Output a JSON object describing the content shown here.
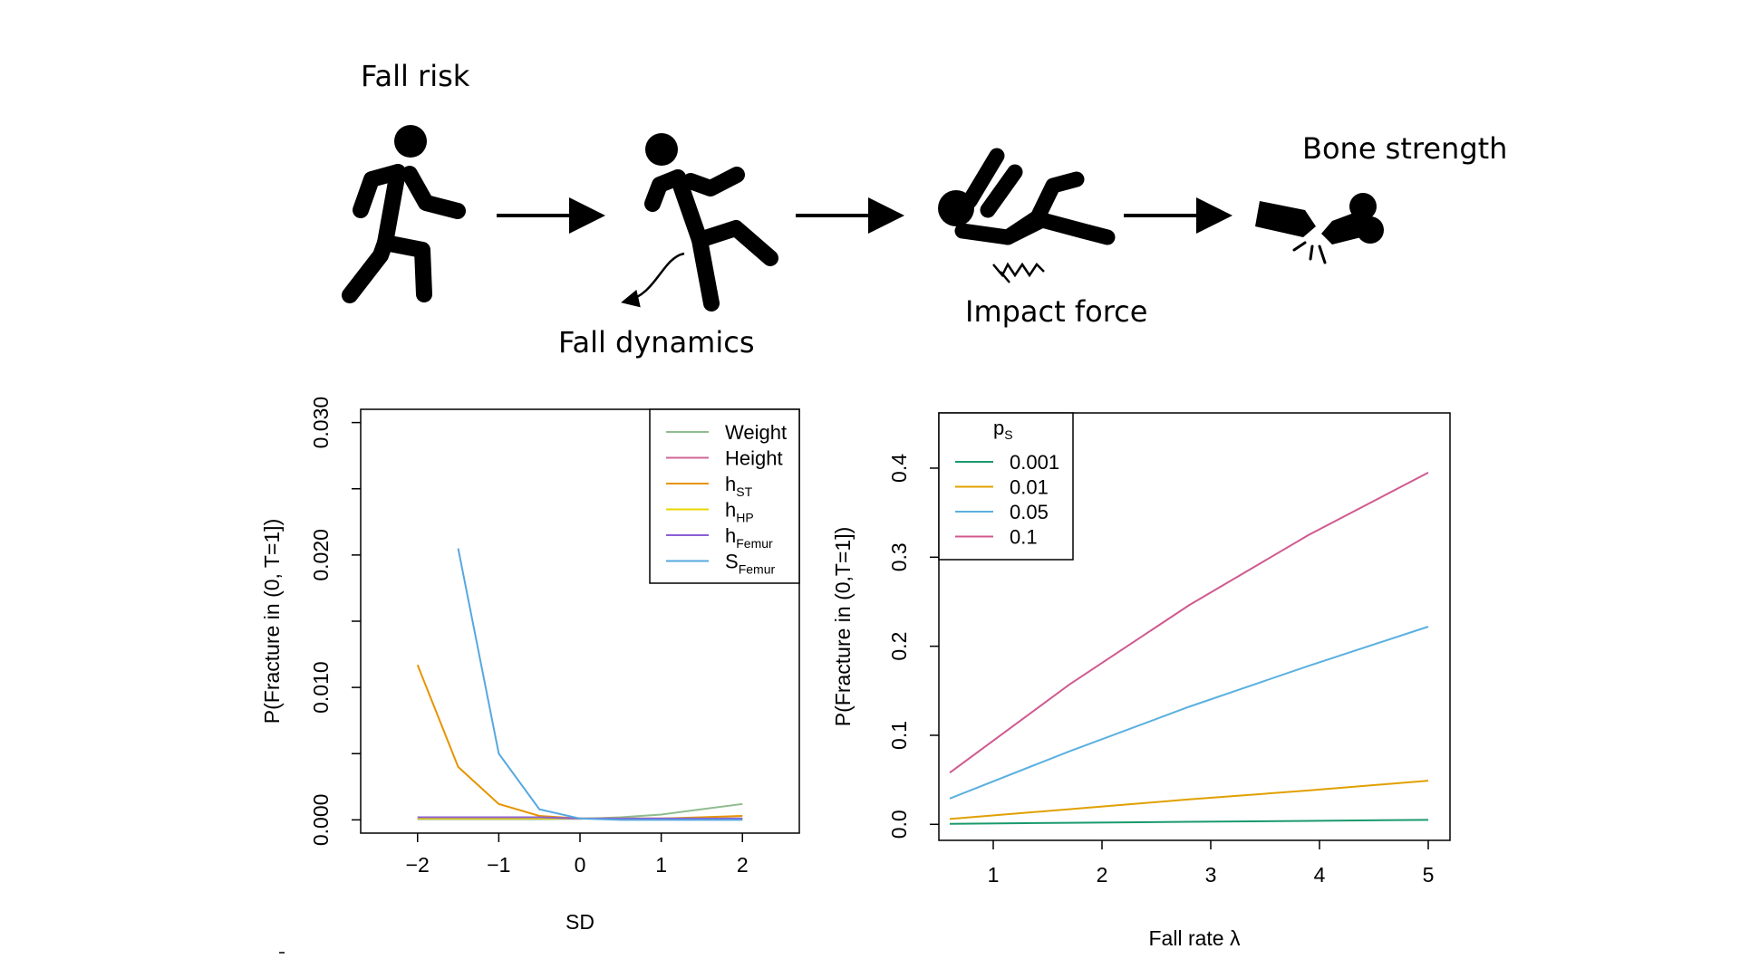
{
  "diagram": {
    "stages": [
      {
        "label": "Fall risk",
        "icon": "walking-person-icon"
      },
      {
        "label": "Fall dynamics",
        "icon": "slipping-person-icon"
      },
      {
        "label": "Impact force",
        "icon": "falling-person-impact-icon"
      },
      {
        "label": "Bone strength",
        "icon": "broken-femur-icon"
      }
    ],
    "arrow_icon": "right-arrow-icon"
  },
  "chart_data": [
    {
      "type": "line",
      "xlabel": "SD",
      "ylabel": "P(Fracture in (0, T=1])",
      "xlim": [
        -2.7,
        2.7
      ],
      "ylim": [
        -0.001,
        0.031
      ],
      "xticks": [
        -2,
        -1,
        0,
        1,
        2
      ],
      "xtick_labels": [
        "−2",
        "−1",
        "0",
        "1",
        "2"
      ],
      "yticks": [
        0.0,
        0.005,
        0.01,
        0.015,
        0.02,
        0.025,
        0.03
      ],
      "ytick_labels": [
        "0.000",
        "",
        "0.010",
        "",
        "0.020",
        "",
        "0.030"
      ],
      "legend_placement": "top-right",
      "series": [
        {
          "name": "Weight",
          "label_main": "Weight",
          "label_sub": "",
          "color": "#8fbc8f",
          "x": [
            -2,
            -1.5,
            -1,
            -0.5,
            0,
            0.5,
            1,
            1.5,
            2
          ],
          "values": [
            5e-05,
            5e-05,
            5e-05,
            5e-05,
            8e-05,
            0.0002,
            0.0004,
            0.0008,
            0.0012
          ]
        },
        {
          "name": "Height",
          "label_main": "Height",
          "label_sub": "",
          "color": "#cc6699",
          "x": [
            -2,
            -1.5,
            -1,
            -0.5,
            0,
            0.5,
            1,
            1.5,
            2
          ],
          "values": [
            0.0001,
            0.0001,
            0.0001,
            0.0001,
            0.0001,
            0.0001,
            0.0001,
            0.0001,
            0.0001
          ]
        },
        {
          "name": "hST",
          "label_main": "h",
          "label_sub": "ST",
          "color": "#e69500",
          "x": [
            -2,
            -1.5,
            -1,
            -0.5,
            0,
            0.5,
            1,
            1.5,
            2
          ],
          "values": [
            0.0117,
            0.004,
            0.0012,
            0.0003,
            0.0001,
            0.0001,
            0.0001,
            0.0002,
            0.0003
          ]
        },
        {
          "name": "hHP",
          "label_main": "h",
          "label_sub": "HP",
          "color": "#e6d700",
          "x": [
            -2,
            -1.5,
            -1,
            -0.5,
            0,
            0.5,
            1,
            1.5,
            2
          ],
          "values": [
            0.0001,
            0.0001,
            0.0001,
            0.0001,
            0.0001,
            0.0001,
            0.0001,
            0.0001,
            0.0001
          ]
        },
        {
          "name": "hFemur",
          "label_main": "h",
          "label_sub": "Femur",
          "color": "#8a5fd6",
          "x": [
            -2,
            -1.5,
            -1,
            -0.5,
            0,
            0.5,
            1,
            1.5,
            2
          ],
          "values": [
            0.0002,
            0.0002,
            0.0002,
            0.0002,
            0.0001,
            0.0001,
            0.0001,
            0.0001,
            0.0001
          ]
        },
        {
          "name": "SFemur",
          "label_main": "S",
          "label_sub": "Femur",
          "color": "#56a8e0",
          "x": [
            -1.5,
            -1,
            -0.5,
            0,
            0.5,
            1,
            1.5,
            2
          ],
          "values": [
            0.0205,
            0.005,
            0.0008,
            0.0001,
            0.0,
            0.0,
            0.0,
            0.0
          ]
        }
      ]
    },
    {
      "type": "line",
      "xlabel": "Fall rate λ",
      "ylabel": "P(Fracture in (0,T=1])",
      "xlim": [
        0.5,
        5.2
      ],
      "ylim": [
        -0.018,
        0.462
      ],
      "xticks": [
        1,
        2,
        3,
        4,
        5
      ],
      "xtick_labels": [
        "1",
        "2",
        "3",
        "4",
        "5"
      ],
      "yticks": [
        0.0,
        0.1,
        0.2,
        0.3,
        0.4
      ],
      "ytick_labels": [
        "0.0",
        "0.1",
        "0.2",
        "0.3",
        "0.4"
      ],
      "legend_title_main": "p",
      "legend_title_sub": "S",
      "legend_placement": "top-left",
      "series": [
        {
          "name": "0.001",
          "color": "#1a9a6c",
          "x": [
            0.6,
            1.7,
            2.8,
            3.9,
            5.0
          ],
          "values": [
            0.0006,
            0.0017,
            0.0028,
            0.0039,
            0.005
          ]
        },
        {
          "name": "0.01",
          "color": "#e0a000",
          "x": [
            0.6,
            1.7,
            2.8,
            3.9,
            5.0
          ],
          "values": [
            0.006,
            0.017,
            0.028,
            0.038,
            0.049
          ]
        },
        {
          "name": "0.05",
          "color": "#5ab0e0",
          "x": [
            0.6,
            1.7,
            2.8,
            3.9,
            5.0
          ],
          "values": [
            0.029,
            0.082,
            0.132,
            0.178,
            0.222
          ]
        },
        {
          "name": "0.1",
          "color": "#d05a90",
          "x": [
            0.6,
            1.7,
            2.8,
            3.9,
            5.0
          ],
          "values": [
            0.058,
            0.157,
            0.246,
            0.325,
            0.395
          ]
        }
      ]
    }
  ]
}
